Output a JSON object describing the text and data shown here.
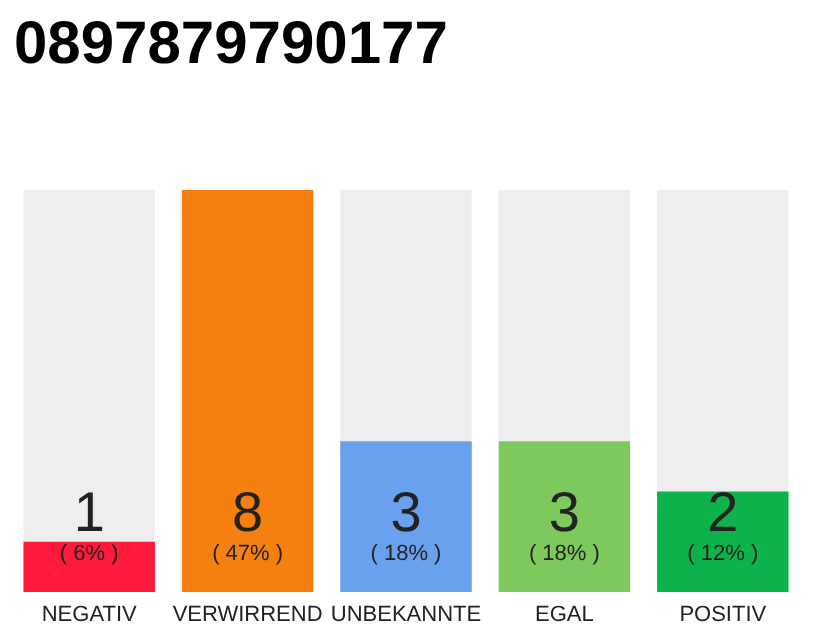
{
  "chart_data": {
    "type": "bar",
    "title": "0897879790177",
    "categories": [
      "NEGATIV",
      "VERWIRREND",
      "UNBEKANNTE",
      "EGAL",
      "POSITIV"
    ],
    "values": [
      1,
      8,
      3,
      3,
      2
    ],
    "colors": [
      "#ff1a3c",
      "#f5800f",
      "#6aa1ef",
      "#7dc95e",
      "#0cb34a"
    ],
    "data_labels": true,
    "tick_labels": "x",
    "annotations": [
      "( 6% )",
      "( 47% )",
      "( 18% )",
      "( 18% )",
      "( 12% )"
    ]
  }
}
